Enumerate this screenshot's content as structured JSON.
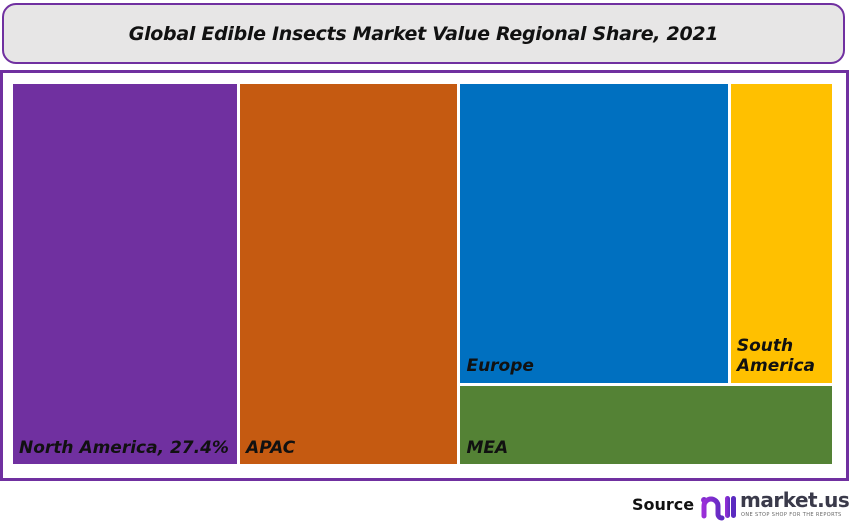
{
  "chart_data": {
    "type": "treemap",
    "title": "Global Edible Insects Market Value Regional Share, 2021",
    "items": [
      {
        "name": "North America",
        "value": 27.4,
        "label": "North America, 27.4%",
        "color": "#7030a0"
      },
      {
        "name": "APAC",
        "value": 26.6,
        "label": "APAC",
        "color": "#c55a11"
      },
      {
        "name": "Europe",
        "value": 25.7,
        "label": "Europe",
        "color": "#0070c0"
      },
      {
        "name": "South America",
        "value": 9.9,
        "label": "South America",
        "color": "#ffc000"
      },
      {
        "name": "MEA",
        "value": 9.6,
        "label": "MEA",
        "color": "#548235"
      }
    ]
  },
  "footer": {
    "source_label": "Source",
    "brand": "market.us",
    "tagline": "ONE STOP SHOP FOR THE REPORTS"
  }
}
